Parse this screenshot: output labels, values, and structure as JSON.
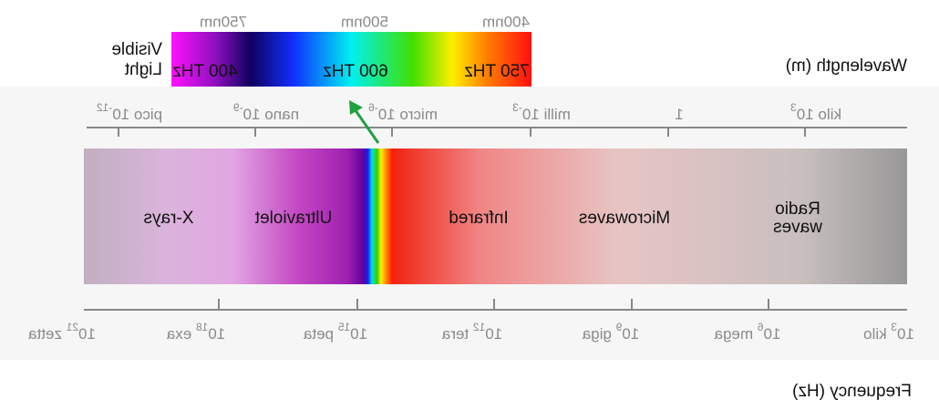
{
  "visible_light": {
    "label_lines": [
      "Visible",
      "Light"
    ],
    "wavelengths": [
      "400nm",
      "500nm",
      "750nm"
    ],
    "frequencies": [
      "750 THz",
      "600 THz",
      "400 THz"
    ]
  },
  "wavelength_axis": {
    "title": "Wavelength (m)",
    "ticks": [
      {
        "prefix": "kilo",
        "base": "10",
        "exp": "3"
      },
      {
        "base": "1"
      },
      {
        "prefix": "milli",
        "base": "10",
        "exp": "-3"
      },
      {
        "prefix": "micro",
        "base": "10",
        "exp": "-6"
      },
      {
        "prefix": "nano",
        "base": "10",
        "exp": "-9"
      },
      {
        "prefix": "pico",
        "base": "10",
        "exp": "-12"
      }
    ]
  },
  "regions": [
    [
      "Radio",
      "waves"
    ],
    [
      "Microwaves"
    ],
    [
      "Infrared"
    ],
    [
      "Ultraviolet"
    ],
    [
      "X-rays"
    ]
  ],
  "frequency_axis": {
    "title": "Frequency (Hz)",
    "ticks": [
      {
        "base": "10",
        "exp": "3",
        "suffix": "kilo"
      },
      {
        "base": "10",
        "exp": "6",
        "suffix": "mega"
      },
      {
        "base": "10",
        "exp": "9",
        "suffix": "giga"
      },
      {
        "base": "10",
        "exp": "12",
        "suffix": "tera"
      },
      {
        "base": "10",
        "exp": "15",
        "suffix": "peta"
      },
      {
        "base": "10",
        "exp": "18",
        "suffix": "exa"
      },
      {
        "base": "10",
        "exp": "21",
        "suffix": "zetta"
      }
    ]
  }
}
